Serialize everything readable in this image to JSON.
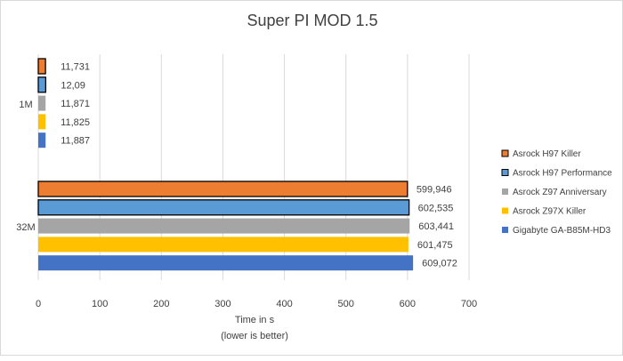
{
  "chart_data": {
    "type": "bar",
    "orientation": "horizontal",
    "title": "Super PI MOD 1.5",
    "xlabel": "Time in s",
    "xlabel_note": "(lower is better)",
    "ylabel": "",
    "xlim": [
      0,
      700
    ],
    "xticks": [
      "0",
      "100",
      "200",
      "300",
      "400",
      "500",
      "600",
      "700"
    ],
    "xtick_values": [
      0,
      100,
      200,
      300,
      400,
      500,
      600,
      700
    ],
    "grid": true,
    "legend_position": "right",
    "categories": [
      "1M",
      "32M"
    ],
    "series": [
      {
        "name": "Asrock H97 Killer",
        "color": "#ED7D31",
        "outlined": true,
        "values": [
          11.731,
          599.946
        ],
        "labels": [
          "11,731",
          "599,946"
        ]
      },
      {
        "name": "Asrock H97 Performance",
        "color": "#5B9BD5",
        "outlined": true,
        "values": [
          12.09,
          602.535
        ],
        "labels": [
          "12,09",
          "602,535"
        ]
      },
      {
        "name": "Asrock Z97 Anniversary",
        "color": "#A5A5A5",
        "outlined": false,
        "values": [
          11.871,
          603.441
        ],
        "labels": [
          "11,871",
          "603,441"
        ]
      },
      {
        "name": "Asrock Z97X Killer",
        "color": "#FFC000",
        "outlined": false,
        "values": [
          11.825,
          601.475
        ],
        "labels": [
          "11,825",
          "601,475"
        ]
      },
      {
        "name": "Gigabyte GA-B85M-HD3",
        "color": "#4472C4",
        "outlined": false,
        "values": [
          11.887,
          609.072
        ],
        "labels": [
          "11,887",
          "609,072"
        ]
      }
    ]
  }
}
